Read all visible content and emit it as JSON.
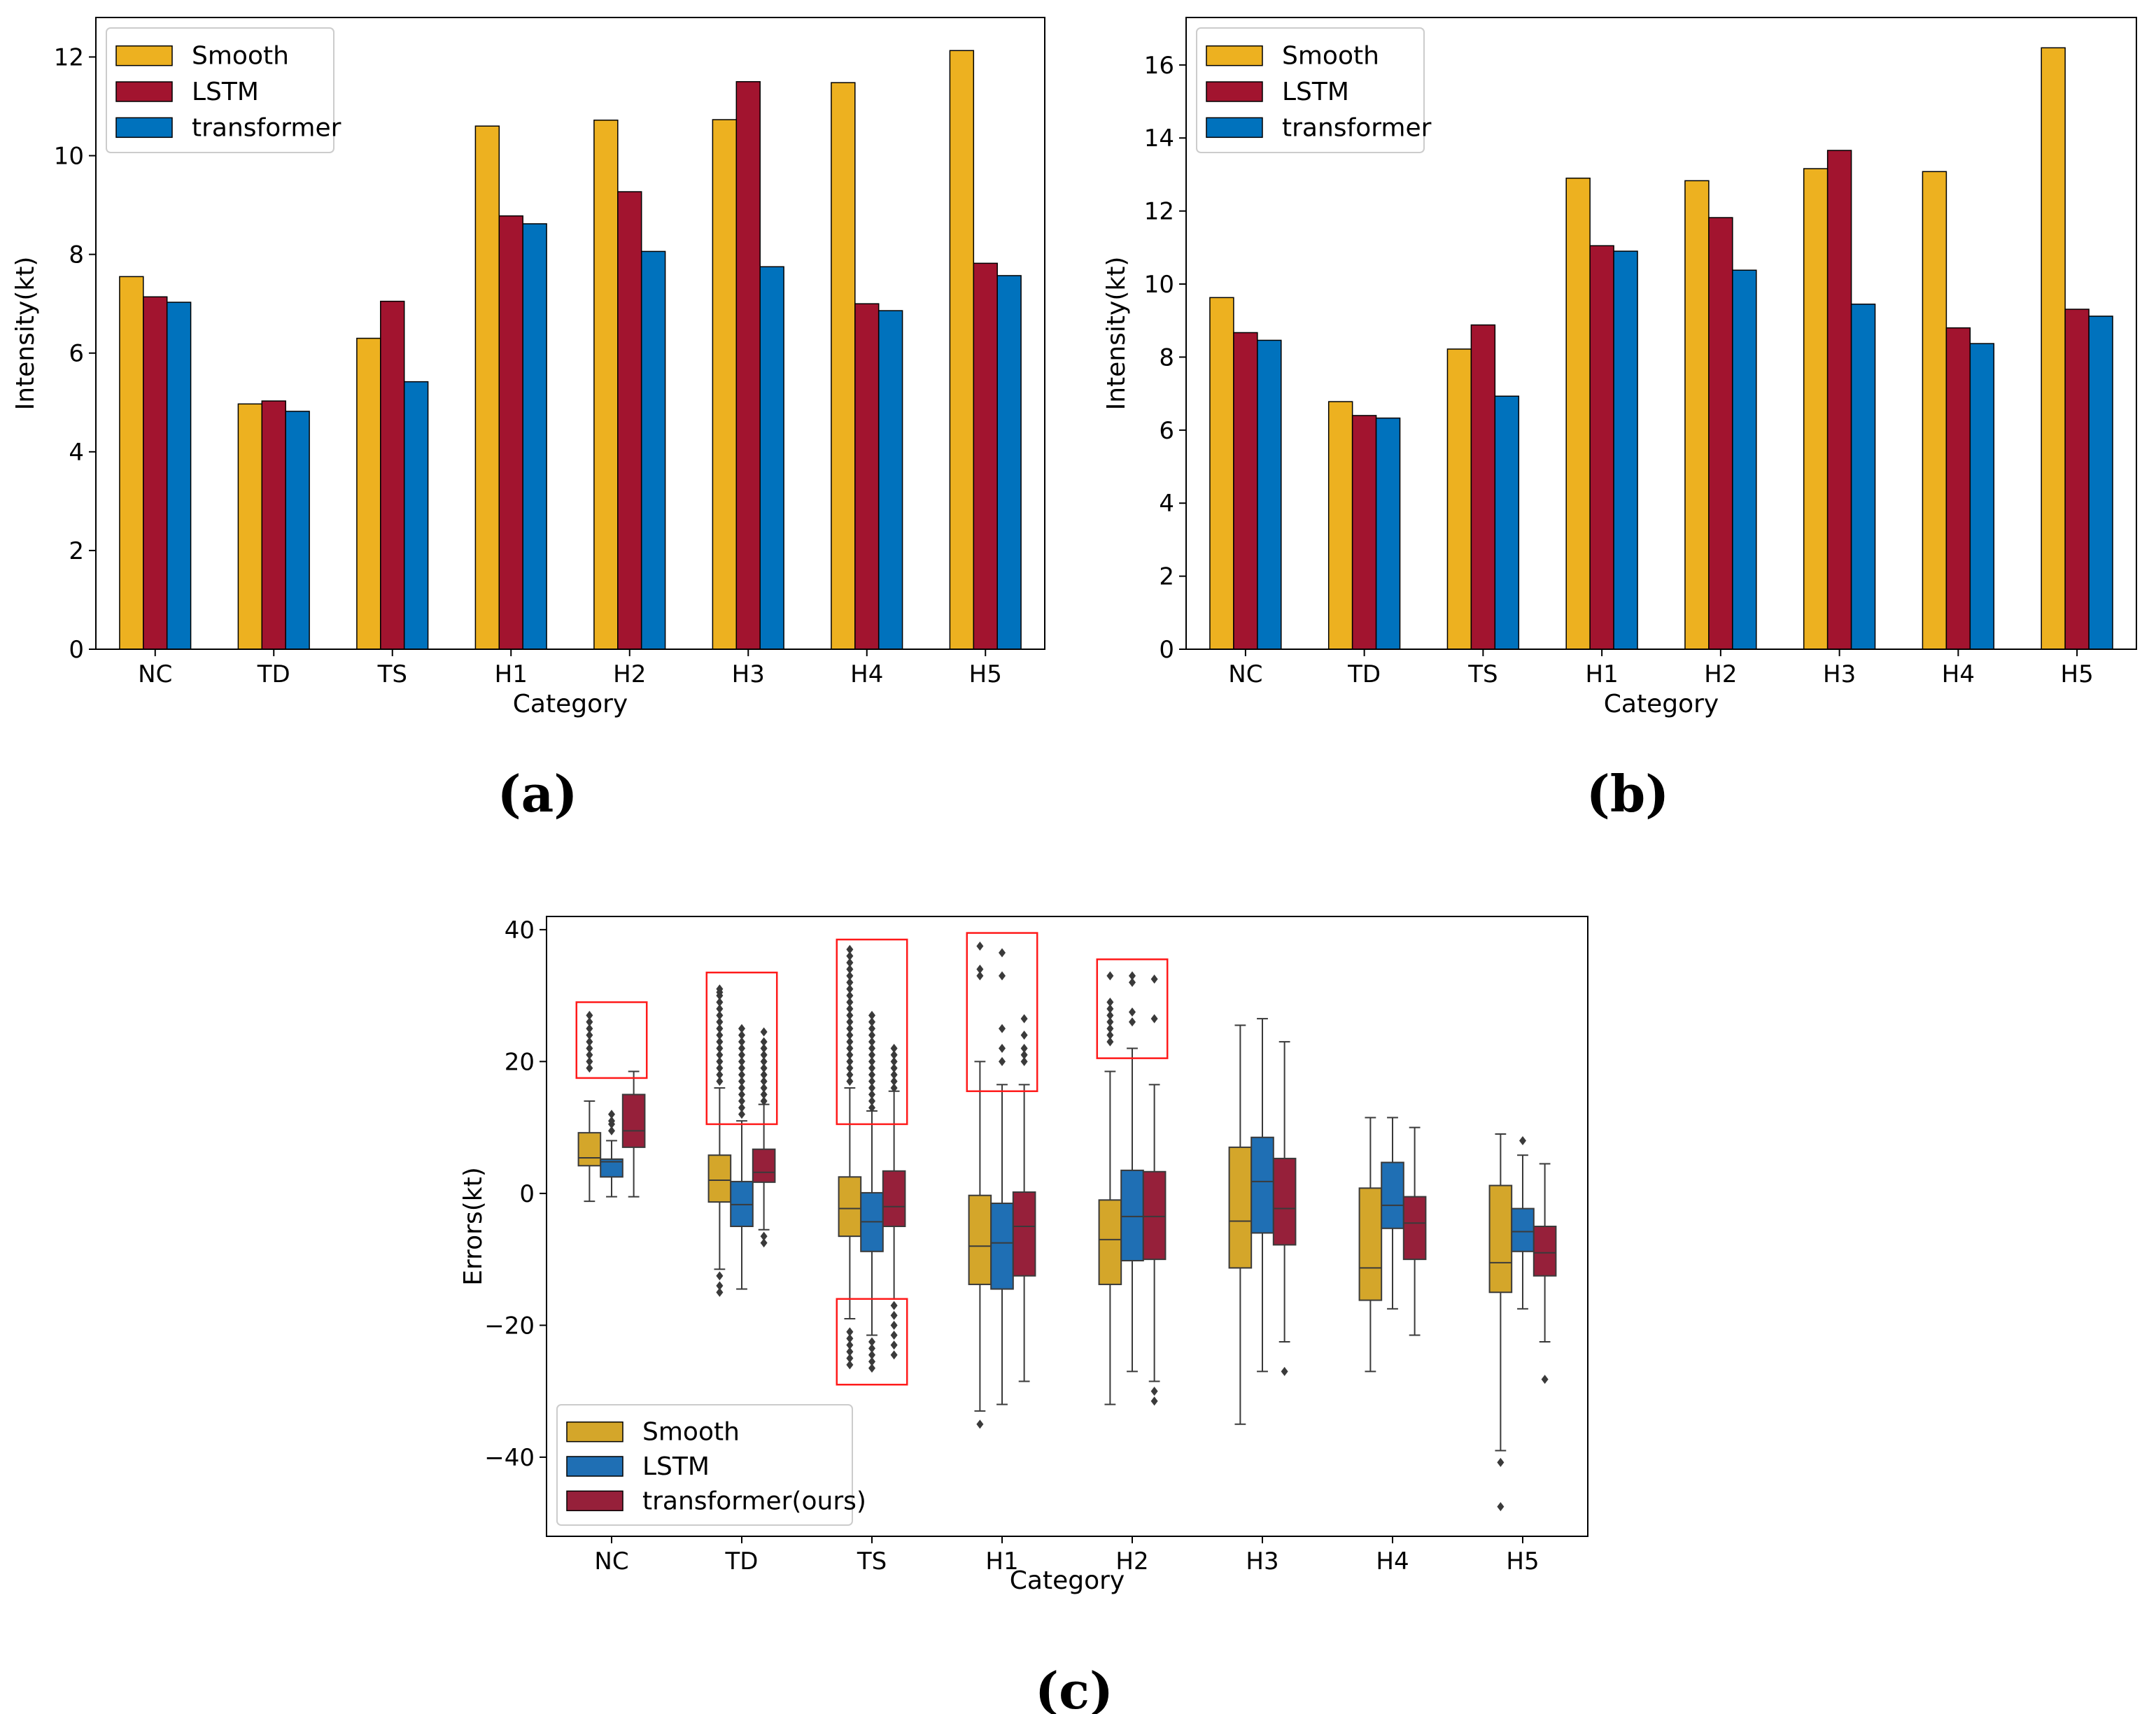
{
  "chart_data": [
    {
      "panel": "a",
      "type": "bar",
      "categories": [
        "NC",
        "TD",
        "TS",
        "H1",
        "H2",
        "H3",
        "H4",
        "H5"
      ],
      "series": [
        {
          "name": "Smooth",
          "color": "#EDB120",
          "values": [
            7.55,
            4.97,
            6.3,
            10.6,
            10.72,
            10.73,
            11.48,
            12.13
          ]
        },
        {
          "name": "LSTM",
          "color": "#A2142F",
          "values": [
            7.14,
            5.03,
            7.05,
            8.78,
            9.27,
            11.5,
            7.0,
            7.82
          ]
        },
        {
          "name": "transformer",
          "color": "#0072BD",
          "values": [
            7.03,
            4.82,
            5.42,
            8.62,
            8.06,
            7.75,
            6.86,
            7.57
          ]
        }
      ],
      "title": "",
      "xlabel": "Category",
      "ylabel": "Intensity(kt)",
      "ylim": [
        0,
        12.8
      ],
      "yticks": [
        0,
        2,
        4,
        6,
        8,
        10,
        12
      ],
      "legend": "top-left",
      "caption": "(a)"
    },
    {
      "panel": "b",
      "type": "bar",
      "categories": [
        "NC",
        "TD",
        "TS",
        "H1",
        "H2",
        "H3",
        "H4",
        "H5"
      ],
      "series": [
        {
          "name": "Smooth",
          "color": "#EDB120",
          "values": [
            9.63,
            6.78,
            8.22,
            12.9,
            12.83,
            13.16,
            13.08,
            16.47
          ]
        },
        {
          "name": "LSTM",
          "color": "#A2142F",
          "values": [
            8.67,
            6.4,
            8.88,
            11.05,
            11.82,
            13.66,
            8.8,
            9.31
          ]
        },
        {
          "name": "transformer",
          "color": "#0072BD",
          "values": [
            8.46,
            6.33,
            6.93,
            10.9,
            10.38,
            9.45,
            8.37,
            9.12
          ]
        }
      ],
      "title": "",
      "xlabel": "Category",
      "ylabel": "Intensity(kt)",
      "ylim": [
        0,
        17.3
      ],
      "yticks": [
        0,
        2,
        4,
        6,
        8,
        10,
        12,
        14,
        16
      ],
      "legend": "top-left",
      "caption": "(b)"
    },
    {
      "panel": "c",
      "type": "box",
      "categories": [
        "NC",
        "TD",
        "TS",
        "H1",
        "H2",
        "H3",
        "H4",
        "H5"
      ],
      "series": [
        {
          "name": "Smooth",
          "color": "#D4A62A",
          "boxes": [
            {
              "q1": 4.2,
              "median": 5.4,
              "q3": 9.2,
              "wlow": -1.2,
              "whigh": 14.0,
              "outliers": [
                19,
                20,
                21,
                22,
                23,
                24,
                25,
                26,
                27
              ]
            },
            {
              "q1": -1.3,
              "median": 2.0,
              "q3": 5.8,
              "wlow": -11.5,
              "whigh": 16.0,
              "outliers": [
                -15,
                -14,
                -12.5,
                17,
                18,
                19,
                20,
                21,
                22,
                23,
                24,
                25,
                26,
                27,
                28,
                29,
                30,
                30.5,
                31
              ]
            },
            {
              "q1": -6.5,
              "median": -2.3,
              "q3": 2.5,
              "wlow": -19.0,
              "whigh": 16.0,
              "outliers": [
                -26,
                -25,
                -24,
                -23,
                -22,
                -21,
                17,
                18,
                19,
                20,
                21,
                22,
                23,
                24,
                25,
                26,
                27,
                28,
                29,
                30,
                31,
                32,
                33,
                34,
                35,
                36,
                37
              ]
            },
            {
              "q1": -13.8,
              "median": -8.0,
              "q3": -0.3,
              "wlow": -33.0,
              "whigh": 20.0,
              "outliers": [
                -35,
                33,
                34,
                37.5
              ]
            },
            {
              "q1": -13.8,
              "median": -7.0,
              "q3": -1.0,
              "wlow": -32.0,
              "whigh": 18.5,
              "outliers": [
                23,
                24,
                25,
                26,
                27,
                28,
                29,
                33
              ]
            },
            {
              "q1": -11.3,
              "median": -4.2,
              "q3": 7.0,
              "wlow": -35.0,
              "whigh": 25.5,
              "outliers": []
            },
            {
              "q1": -16.2,
              "median": -11.3,
              "q3": 0.8,
              "wlow": -27.0,
              "whigh": 11.5,
              "outliers": []
            },
            {
              "q1": -15.0,
              "median": -10.5,
              "q3": 1.2,
              "wlow": -39.0,
              "whigh": 9.0,
              "outliers": [
                -47.5,
                -40.8
              ]
            }
          ]
        },
        {
          "name": "LSTM",
          "color": "#1F6FB4",
          "boxes": [
            {
              "q1": 2.5,
              "median": 4.8,
              "q3": 5.2,
              "wlow": -0.5,
              "whigh": 8.0,
              "outliers": [
                9.5,
                10.5,
                11,
                12
              ]
            },
            {
              "q1": -5.0,
              "median": -1.7,
              "q3": 1.8,
              "wlow": -14.5,
              "whigh": 11.0,
              "outliers": [
                12,
                13,
                14,
                15,
                16,
                17,
                18,
                19,
                20,
                21,
                22,
                23,
                24,
                25
              ]
            },
            {
              "q1": -8.8,
              "median": -4.3,
              "q3": 0.1,
              "wlow": -21.5,
              "whigh": 12.5,
              "outliers": [
                -26.5,
                -25.5,
                -24.5,
                -23.5,
                -22.5,
                13,
                14,
                15,
                16,
                17,
                18,
                19,
                20,
                21,
                22,
                23,
                24,
                25,
                26,
                27
              ]
            },
            {
              "q1": -14.5,
              "median": -7.5,
              "q3": -1.5,
              "wlow": -32.0,
              "whigh": 16.5,
              "outliers": [
                20,
                22,
                25,
                33,
                36.5
              ]
            },
            {
              "q1": -10.2,
              "median": -3.5,
              "q3": 3.5,
              "wlow": -27.0,
              "whigh": 22.0,
              "outliers": [
                26,
                27.5,
                32,
                33
              ]
            },
            {
              "q1": -6.0,
              "median": 1.8,
              "q3": 8.5,
              "wlow": -27.0,
              "whigh": 26.5,
              "outliers": []
            },
            {
              "q1": -5.3,
              "median": -1.8,
              "q3": 4.7,
              "wlow": -17.5,
              "whigh": 11.5,
              "outliers": []
            },
            {
              "q1": -8.8,
              "median": -5.8,
              "q3": -2.3,
              "wlow": -17.5,
              "whigh": 5.8,
              "outliers": [
                8
              ]
            }
          ]
        },
        {
          "name": "transformer(ours)",
          "color": "#96203A",
          "boxes": [
            {
              "q1": 7.0,
              "median": 9.5,
              "q3": 15.0,
              "wlow": -0.5,
              "whigh": 18.5,
              "outliers": []
            },
            {
              "q1": 1.7,
              "median": 3.2,
              "q3": 6.7,
              "wlow": -5.5,
              "whigh": 13.5,
              "outliers": [
                -7.5,
                -6.5,
                14,
                15,
                16,
                17,
                18,
                19,
                20,
                21,
                22,
                23,
                24.5
              ]
            },
            {
              "q1": -5.0,
              "median": -2.0,
              "q3": 3.4,
              "wlow": -16.0,
              "whigh": 15.5,
              "outliers": [
                -24.5,
                -23,
                -21.5,
                -20,
                -18.5,
                -17,
                16,
                17,
                18,
                19,
                20,
                21,
                22
              ]
            },
            {
              "q1": -12.5,
              "median": -5.0,
              "q3": 0.2,
              "wlow": -28.5,
              "whigh": 16.5,
              "outliers": [
                20,
                21,
                22,
                24,
                26.5
              ]
            },
            {
              "q1": -10.0,
              "median": -3.5,
              "q3": 3.3,
              "wlow": -28.5,
              "whigh": 16.5,
              "outliers": [
                -31.5,
                -30,
                26.5,
                32.5
              ]
            },
            {
              "q1": -7.8,
              "median": -2.3,
              "q3": 5.3,
              "wlow": -22.5,
              "whigh": 23.0,
              "outliers": [
                -27
              ]
            },
            {
              "q1": -10.0,
              "median": -4.5,
              "q3": -0.5,
              "wlow": -21.5,
              "whigh": 10.0,
              "outliers": []
            },
            {
              "q1": -12.5,
              "median": -9.0,
              "q3": -5.0,
              "wlow": -22.5,
              "whigh": 4.5,
              "outliers": [
                -28.2
              ]
            }
          ]
        }
      ],
      "highlight_regions": [
        {
          "label": "NC outliers",
          "categories": [
            0,
            0
          ],
          "y_range": [
            17.5,
            29
          ]
        },
        {
          "label": "TD outliers",
          "categories": [
            1,
            1
          ],
          "y_range": [
            10.5,
            33.5
          ]
        },
        {
          "label": "TS high outliers",
          "categories": [
            2,
            2
          ],
          "y_range": [
            10.5,
            38.5
          ]
        },
        {
          "label": "TS low outliers",
          "categories": [
            2,
            2
          ],
          "y_range": [
            -29,
            -16
          ]
        },
        {
          "label": "H1 outliers",
          "categories": [
            3,
            3
          ],
          "y_range": [
            15.5,
            39.5
          ]
        },
        {
          "label": "H2 outliers",
          "categories": [
            4,
            4
          ],
          "y_range": [
            20.5,
            35.5
          ]
        }
      ],
      "title": "",
      "xlabel": "Category",
      "ylabel": "Errors(kt)",
      "ylim": [
        -52,
        42
      ],
      "yticks": [
        -40,
        -20,
        0,
        20,
        40
      ],
      "legend": "bottom-left",
      "caption": "(c)"
    }
  ]
}
